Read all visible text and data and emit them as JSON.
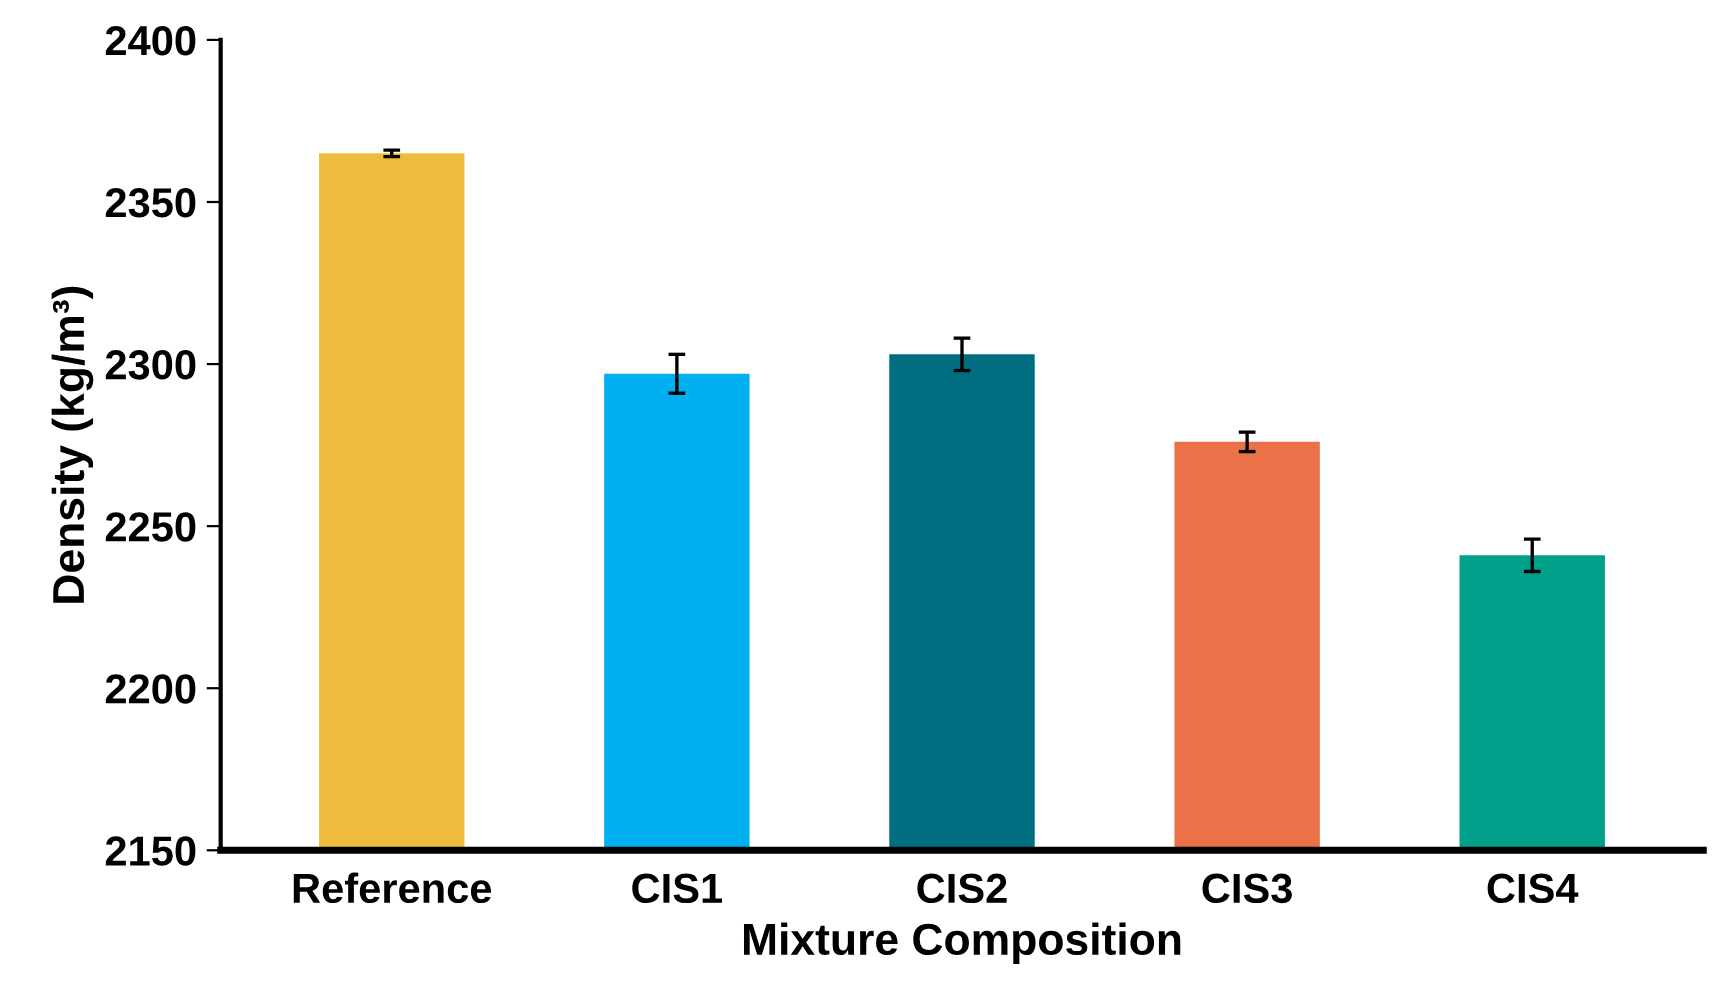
{
  "chart_data": {
    "type": "bar",
    "categories": [
      "Reference",
      "CIS1",
      "CIS2",
      "CIS3",
      "CIS4"
    ],
    "values": [
      2365,
      2297,
      2303,
      2276,
      2241
    ],
    "errors": [
      1,
      6,
      5,
      3,
      5
    ],
    "colors": [
      "#f0bc3e",
      "#00b0f0",
      "#006e80",
      "#eb7248",
      "#00a08a"
    ],
    "xlabel": "Mixture Composition",
    "ylabel": "Density (kg/m³)",
    "ylim": [
      2150,
      2400
    ],
    "yticks": [
      2150,
      2200,
      2250,
      2300,
      2350,
      2400
    ],
    "grid": false
  }
}
